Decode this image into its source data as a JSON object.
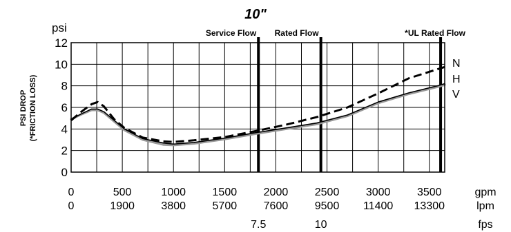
{
  "chart_data": {
    "type": "line",
    "title": "10\"",
    "ylabel_line1": "PSI DROP",
    "ylabel_line2": "(*FRICTION LOSS)",
    "yunit": "psi",
    "xlim": [
      0,
      3650
    ],
    "ylim": [
      0,
      12
    ],
    "grid": true,
    "yticks": [
      0,
      2,
      4,
      6,
      8,
      10,
      12
    ],
    "x_axes": [
      {
        "unit": "gpm",
        "ticks": [
          {
            "v": 0,
            "label": "0"
          },
          {
            "v": 500,
            "label": "500"
          },
          {
            "v": 1000,
            "label": "1000"
          },
          {
            "v": 1500,
            "label": "1500"
          },
          {
            "v": 2000,
            "label": "2000"
          },
          {
            "v": 2500,
            "label": "2500"
          },
          {
            "v": 3000,
            "label": "3000"
          },
          {
            "v": 3500,
            "label": "3500"
          }
        ]
      },
      {
        "unit": "lpm",
        "ticks": [
          {
            "v": 0,
            "label": "0"
          },
          {
            "v": 500,
            "label": "1900"
          },
          {
            "v": 1000,
            "label": "3800"
          },
          {
            "v": 1500,
            "label": "5700"
          },
          {
            "v": 2000,
            "label": "7600"
          },
          {
            "v": 2500,
            "label": "9500"
          },
          {
            "v": 3000,
            "label": "11400"
          },
          {
            "v": 3500,
            "label": "13300"
          }
        ]
      },
      {
        "unit": "fps",
        "ticks": [
          {
            "v": 1830,
            "label": "7.5"
          },
          {
            "v": 2440,
            "label": "10"
          }
        ]
      }
    ],
    "vlines": [
      {
        "x": 1830,
        "label": "Service Flow"
      },
      {
        "x": 2440,
        "label": "Rated Flow"
      },
      {
        "x": 3610,
        "label": "*UL Rated Flow"
      }
    ],
    "series": [
      {
        "name": "N",
        "style": "dashed",
        "color": "#000000",
        "x": [
          0,
          100,
          200,
          260,
          320,
          420,
          520,
          700,
          900,
          1000,
          1200,
          1500,
          1800,
          2100,
          2400,
          2700,
          3000,
          3300,
          3600,
          3650
        ],
        "y": [
          4.8,
          5.6,
          6.3,
          6.5,
          6.1,
          4.9,
          4.1,
          3.2,
          2.85,
          2.8,
          2.95,
          3.25,
          3.8,
          4.4,
          5.1,
          6.0,
          7.3,
          8.7,
          9.6,
          9.75
        ]
      },
      {
        "name": "H",
        "style": "solid",
        "color": "#000000",
        "x": [
          0,
          100,
          200,
          260,
          320,
          420,
          520,
          700,
          900,
          1000,
          1200,
          1500,
          1800,
          2100,
          2400,
          2700,
          3000,
          3300,
          3600,
          3650
        ],
        "y": [
          4.9,
          5.4,
          5.85,
          5.85,
          5.6,
          4.8,
          4.0,
          3.1,
          2.7,
          2.6,
          2.75,
          3.15,
          3.65,
          4.1,
          4.55,
          5.3,
          6.5,
          7.35,
          8.05,
          8.2
        ]
      },
      {
        "name": "V",
        "style": "solid",
        "color": "#9a9a9a",
        "x": [
          0,
          100,
          200,
          260,
          320,
          420,
          520,
          700,
          900,
          1000,
          1200,
          1500,
          1800,
          2100,
          2400,
          2700,
          3000,
          3300,
          3600,
          3650
        ],
        "y": [
          4.9,
          5.35,
          5.75,
          5.75,
          5.5,
          4.7,
          3.9,
          3.0,
          2.55,
          2.5,
          2.65,
          3.05,
          3.55,
          4.0,
          4.45,
          5.2,
          6.4,
          7.25,
          7.95,
          8.1
        ]
      }
    ]
  }
}
